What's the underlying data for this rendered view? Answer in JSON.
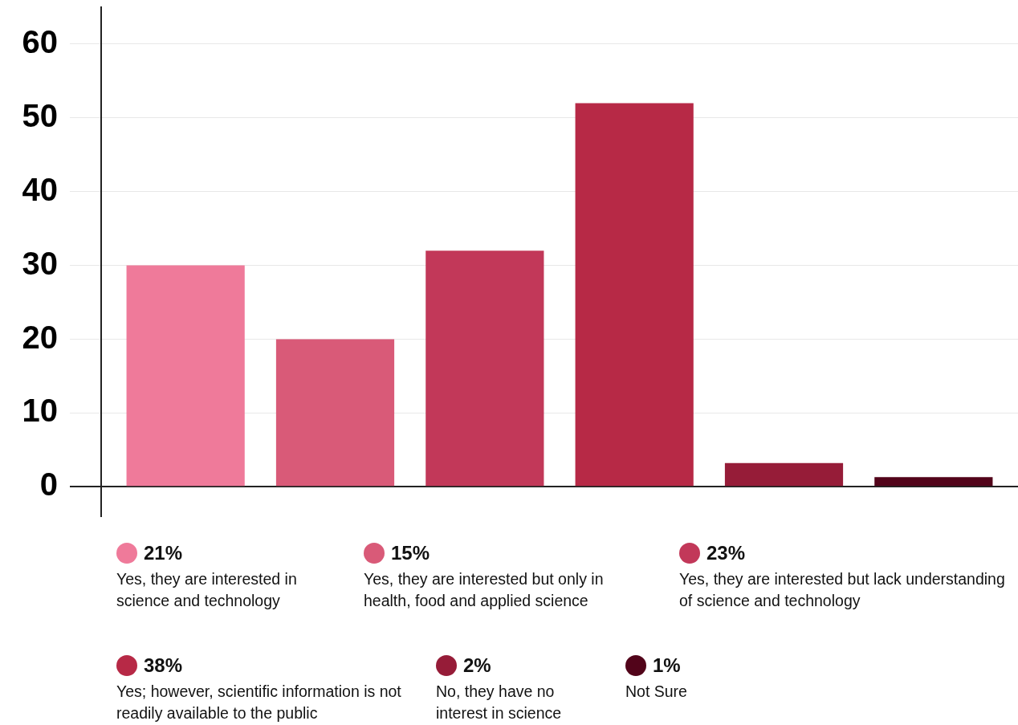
{
  "chart_data": {
    "type": "bar",
    "categories": [
      null
    ],
    "series": [
      {
        "name": "Yes, they are interested in science and technology",
        "color": "#ef7a9a",
        "values": [
          30
        ]
      },
      {
        "name": "Yes, they are interested but only in health, food and applied science",
        "color": "#d95a78",
        "values": [
          20
        ]
      },
      {
        "name": "Yes, they are interested but lack understanding of science and technology",
        "color": "#c23859",
        "values": [
          32
        ]
      },
      {
        "name": "Yes; however, scientific information is not readily available to the public",
        "color": "#b72946",
        "values": [
          52
        ]
      },
      {
        "name": "No, they have no interest in science",
        "color": "#961c38",
        "values": [
          3.2
        ]
      },
      {
        "name": "Not Sure",
        "color": "#52041a",
        "values": [
          1.3
        ]
      }
    ],
    "ylim": [
      -4,
      65
    ],
    "yticks": [
      0,
      10,
      20,
      30,
      40,
      50,
      60
    ],
    "grid": "y",
    "legend": "bottom",
    "annotations": [
      "21%",
      "15%",
      "23%",
      "38%",
      "2%",
      "1%"
    ]
  }
}
